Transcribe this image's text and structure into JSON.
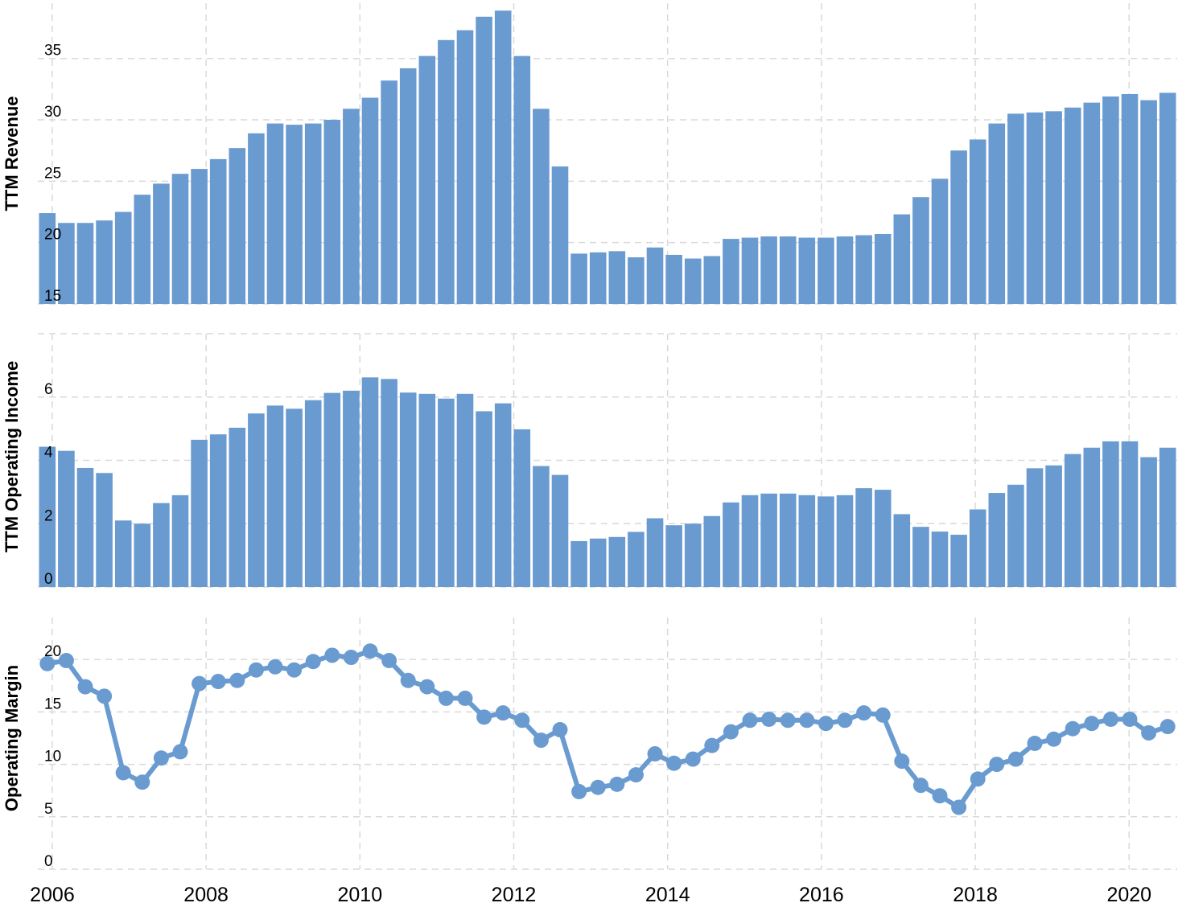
{
  "colors": {
    "bar": "#6a9bd0",
    "line": "#6a9bd0",
    "grid": "#d9d9d9"
  },
  "x_axis": {
    "labels": [
      "2006",
      "2008",
      "2010",
      "2012",
      "2014",
      "2016",
      "2018",
      "2020"
    ]
  },
  "chart_data": [
    {
      "type": "bar",
      "ylabel": "TTM Revenue",
      "ylim": [
        15,
        39.5
      ],
      "yticks": [
        "15",
        "20",
        "25",
        "30",
        "35"
      ],
      "values": [
        22.4,
        21.6,
        21.6,
        21.8,
        22.5,
        23.9,
        24.8,
        25.6,
        26.0,
        26.8,
        27.7,
        28.9,
        29.7,
        29.6,
        29.7,
        30.0,
        30.9,
        31.8,
        33.2,
        34.2,
        35.2,
        36.5,
        37.3,
        38.4,
        38.9,
        35.2,
        30.9,
        26.2,
        19.1,
        19.2,
        19.3,
        18.8,
        19.6,
        19.0,
        18.7,
        18.9,
        20.3,
        20.4,
        20.5,
        20.5,
        20.4,
        20.4,
        20.5,
        20.6,
        20.7,
        22.3,
        23.7,
        25.2,
        27.5,
        28.4,
        29.7,
        30.5,
        30.6,
        30.7,
        31.0,
        31.4,
        31.9,
        32.1,
        31.6,
        32.2
      ]
    },
    {
      "type": "bar",
      "ylabel": "TTM Operating Income",
      "ylim": [
        0,
        8
      ],
      "yticks": [
        "0",
        "2",
        "4",
        "6"
      ],
      "values": [
        4.43,
        4.3,
        3.76,
        3.6,
        2.1,
        2.0,
        2.65,
        2.9,
        4.65,
        4.82,
        5.03,
        5.48,
        5.73,
        5.63,
        5.9,
        6.13,
        6.2,
        6.62,
        6.57,
        6.14,
        6.1,
        5.95,
        6.1,
        5.55,
        5.8,
        4.98,
        3.82,
        3.54,
        1.45,
        1.53,
        1.58,
        1.74,
        2.17,
        1.95,
        2.0,
        2.24,
        2.67,
        2.9,
        2.95,
        2.95,
        2.9,
        2.86,
        2.9,
        3.12,
        3.07,
        2.3,
        1.9,
        1.75,
        1.65,
        2.45,
        2.97,
        3.23,
        3.75,
        3.84,
        4.2,
        4.4,
        4.6,
        4.6,
        4.1,
        4.4
      ]
    },
    {
      "type": "line",
      "ylabel": "Operating Margin",
      "ylim": [
        0,
        24
      ],
      "yticks": [
        "0",
        "5",
        "10",
        "15",
        "20"
      ],
      "values": [
        19.6,
        19.9,
        17.4,
        16.5,
        9.2,
        8.3,
        10.6,
        11.2,
        17.7,
        17.9,
        18.0,
        19.0,
        19.3,
        19.0,
        19.8,
        20.4,
        20.2,
        20.8,
        19.9,
        18.0,
        17.4,
        16.3,
        16.3,
        14.5,
        14.9,
        14.2,
        12.3,
        13.3,
        7.4,
        7.8,
        8.1,
        9.0,
        11.0,
        10.1,
        10.5,
        11.8,
        13.1,
        14.2,
        14.3,
        14.2,
        14.2,
        13.9,
        14.2,
        14.9,
        14.7,
        10.3,
        8.0,
        7.0,
        5.9,
        8.6,
        10.0,
        10.5,
        12.0,
        12.4,
        13.4,
        13.9,
        14.3,
        14.3,
        13.0,
        13.6
      ]
    }
  ]
}
